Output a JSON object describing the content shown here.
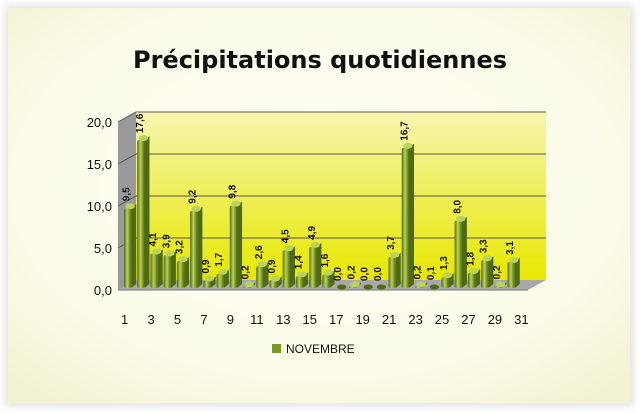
{
  "chart_data": {
    "type": "bar",
    "title": "Précipitations quotidiennes",
    "xlabel": "",
    "ylabel": "",
    "ylim": [
      0,
      20
    ],
    "y_ticks": [
      "0,0",
      "5,0",
      "10,0",
      "15,0",
      "20,0"
    ],
    "y_tick_values": [
      0,
      5,
      10,
      15,
      20
    ],
    "x_tick_labels": [
      "1",
      "3",
      "5",
      "7",
      "9",
      "11",
      "13",
      "15",
      "17",
      "19",
      "21",
      "23",
      "25",
      "27",
      "29",
      "31"
    ],
    "categories": [
      1,
      2,
      3,
      4,
      5,
      6,
      7,
      8,
      9,
      10,
      11,
      12,
      13,
      14,
      15,
      16,
      17,
      18,
      19,
      20,
      21,
      22,
      23,
      24,
      25,
      26,
      27,
      28,
      29,
      30,
      31
    ],
    "series": [
      {
        "name": "NOVEMBRE",
        "values": [
          9.5,
          17.6,
          4.1,
          3.9,
          3.2,
          9.2,
          0.9,
          1.7,
          9.8,
          0.2,
          2.6,
          0.9,
          4.5,
          1.4,
          4.9,
          1.6,
          0.0,
          0.2,
          0.0,
          0.0,
          3.7,
          16.7,
          0.2,
          0.1,
          1.3,
          8.0,
          1.8,
          3.3,
          0.2,
          3.1,
          null
        ],
        "labels": [
          "9,5",
          "17,6",
          "4,1",
          "3,9",
          "3,2",
          "9,2",
          "0,9",
          "1,7",
          "9,8",
          "0,2",
          "2,6",
          "0,9",
          "4,5",
          "1,4",
          "4,9",
          "1,6",
          "0,0",
          "0,2",
          "0,0",
          "0,0",
          "3,7",
          "16,7",
          "0,2",
          "0,1",
          "1,3",
          "8,0",
          "1,8",
          "3,3",
          "0,2",
          "3,1",
          ""
        ]
      }
    ],
    "grid": true,
    "legend_position": "bottom",
    "colors": {
      "bar": "#7a9a24",
      "bar_light": "#b8d45a",
      "bar_dark": "#4f6a12",
      "wall_top": "#f6f6b0",
      "wall_bottom": "#e8e800",
      "floor": "#a8a8a8",
      "side_wall": "#9a9a9a",
      "grid": "#555555"
    }
  }
}
